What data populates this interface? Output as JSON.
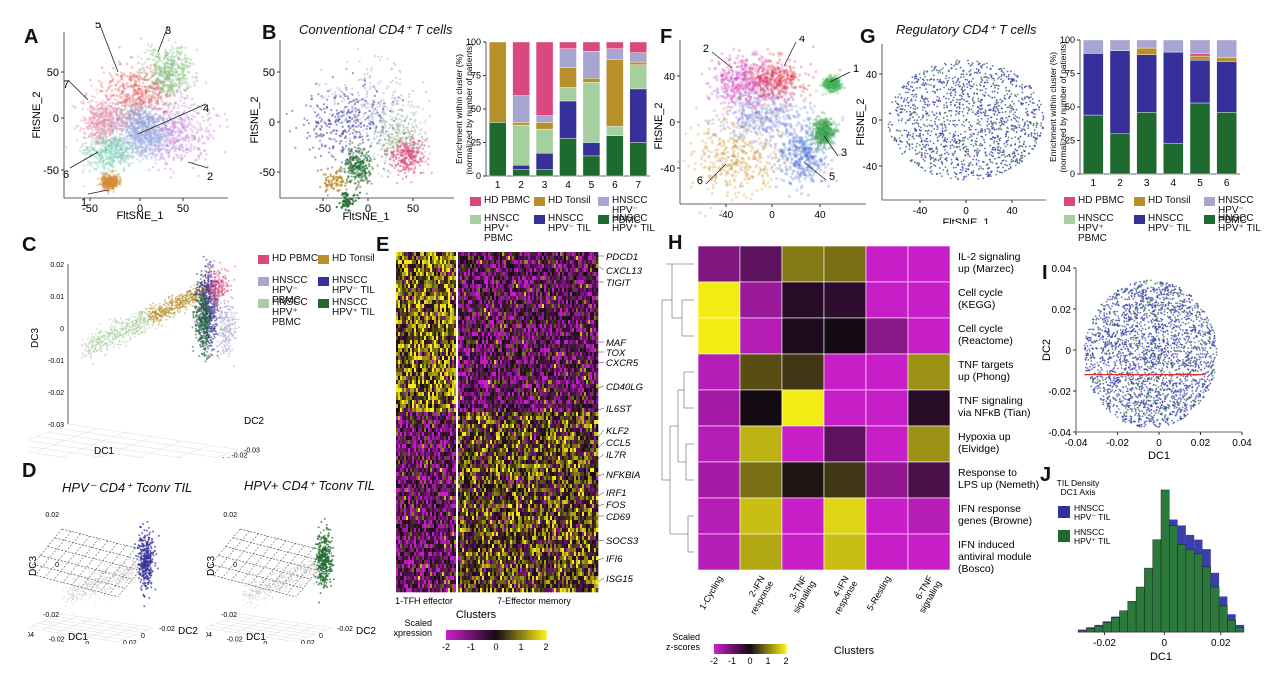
{
  "labels": {
    "A": "A",
    "B": "B",
    "C": "C",
    "D": "D",
    "E": "E",
    "F": "F",
    "G": "G",
    "H": "H",
    "I": "I",
    "J": "J"
  },
  "titles": {
    "B": "Conventional CD4⁺ T cells",
    "G": "Regulatory CD4⁺ T cells",
    "D1": "HPV⁻ CD4⁺ Tconv TIL",
    "D2": "HPV+ CD4⁺ Tconv TIL"
  },
  "colors": {
    "hd_pbmc": "#d9487f",
    "hd_tonsil": "#b8902a",
    "hpvneg_pbmc": "#a7a5d2",
    "hpvpos_pbmc": "#a6cfa0",
    "hpvneg_til": "#35309a",
    "hpvpos_til": "#1f6b2f"
  },
  "legend": [
    {
      "key": "hd_pbmc",
      "label": "HD PBMC"
    },
    {
      "key": "hd_tonsil",
      "label": "HD Tonsil"
    },
    {
      "key": "hpvneg_pbmc",
      "label": "HNSCC\nHPV⁻ PBMC"
    },
    {
      "key": "hpvpos_pbmc",
      "label": "HNSCC\nHPV⁺\nPBMC"
    },
    {
      "key": "hpvneg_til",
      "label": "HNSCC\nHPV⁻ TIL"
    },
    {
      "key": "hpvpos_til",
      "label": "HNSCC\nHPV⁺ TIL"
    }
  ],
  "legend_C": [
    {
      "key": "hd_pbmc",
      "label": "HD PBMC"
    },
    {
      "key": "hd_tonsil",
      "label": "HD Tonsil"
    },
    {
      "key": "hpvneg_pbmc",
      "label": "HNSCC\nHPV⁻\nPBMC"
    },
    {
      "key": "hpvneg_til",
      "label": "HNSCC\nHPV⁻ TIL"
    },
    {
      "key": "hpvpos_pbmc",
      "label": "HNSCC\nHPV⁺\nPBMC"
    },
    {
      "key": "hpvpos_til",
      "label": "HNSCC\nHPV⁺ TIL"
    }
  ],
  "chart_data": [
    {
      "id": "A",
      "type": "scatter",
      "xlabel": "FltSNE_1",
      "ylabel": "FltSNE_2",
      "xticks": [
        -50,
        0,
        50
      ],
      "yticks": [
        -50,
        0,
        50
      ],
      "cluster_labels": [
        "1",
        "2",
        "3",
        "4",
        "5",
        "6",
        "7"
      ]
    },
    {
      "id": "B_scatter",
      "type": "scatter",
      "xlabel": "FltSNE_1",
      "ylabel": "FltSNE_2",
      "xticks": [
        -50,
        0,
        50
      ],
      "yticks": [
        -50,
        0,
        50
      ]
    },
    {
      "id": "B",
      "type": "bar",
      "stacked": true,
      "ylabel": "Enrichment within cluster (%)\n(normalized by number of patients)",
      "ylim": [
        0,
        100
      ],
      "yticks": [
        0,
        25,
        50,
        75,
        100
      ],
      "categories": [
        "1",
        "2",
        "3",
        "4",
        "5",
        "6",
        "7"
      ],
      "series": [
        {
          "name": "HNSCC HPV⁺ TIL",
          "key": "hpvpos_til",
          "values": [
            40,
            5,
            5,
            28,
            15,
            30,
            25
          ]
        },
        {
          "name": "HNSCC HPV⁻ TIL",
          "key": "hpvneg_til",
          "values": [
            0,
            3,
            12,
            28,
            10,
            0,
            40
          ]
        },
        {
          "name": "HNSCC HPV⁺ PBMC",
          "key": "hpvpos_pbmc",
          "values": [
            0,
            30,
            18,
            10,
            45,
            7,
            18
          ]
        },
        {
          "name": "HD Tonsil",
          "key": "hd_tonsil",
          "values": [
            60,
            2,
            5,
            15,
            3,
            50,
            2
          ]
        },
        {
          "name": "HNSCC HPV⁻ PBMC",
          "key": "hpvneg_pbmc",
          "values": [
            0,
            20,
            5,
            14,
            20,
            8,
            7
          ]
        },
        {
          "name": "HD PBMC",
          "key": "hd_pbmc",
          "values": [
            0,
            40,
            55,
            5,
            7,
            5,
            8
          ]
        }
      ]
    },
    {
      "id": "C",
      "type": "scatter",
      "three_d": true,
      "xlabel": "DC1",
      "ylabel": "DC2",
      "zlabel": "DC3",
      "xticks": [
        -0.04,
        -0.03,
        -0.02,
        -0.01,
        0,
        0.01,
        0.02
      ],
      "yticks": [
        -0.03,
        -0.02,
        -0.01,
        0,
        0.01,
        0.02
      ],
      "zticks": [
        -0.03,
        -0.02,
        -0.01,
        0,
        0.01,
        0.02
      ]
    },
    {
      "id": "D",
      "type": "scatter",
      "three_d": true,
      "xlabel": "DC1",
      "ylabel": "DC2",
      "zlabel": "DC3",
      "xticks": [
        -0.04,
        -0.02,
        0,
        0.02
      ],
      "yticks": [
        -0.02,
        0,
        0.02
      ],
      "zticks": [
        -0.02,
        0,
        0.02
      ]
    },
    {
      "id": "E",
      "type": "heatmap",
      "xlabel": "Clusters",
      "groups": [
        "1-TFH effector",
        "7-Effector memory"
      ],
      "genes": [
        "PDCD1",
        "CXCL13",
        "TIGIT",
        "MAF",
        "TOX",
        "CXCR5",
        "CD40LG",
        "IL6ST",
        "KLF2",
        "CCL5",
        "IL7R",
        "NFKBIA",
        "IRF1",
        "FOS",
        "CD69",
        "SOCS3",
        "IFI6",
        "ISG15"
      ],
      "colorbar_label": "Scaled\nExpression",
      "colorbar_ticks": [
        "-2",
        "-1",
        "0",
        "1",
        "2"
      ]
    },
    {
      "id": "F",
      "type": "scatter",
      "xlabel": "FltSNE_1",
      "ylabel": "FltSNE_2",
      "xticks": [
        -40,
        0,
        40
      ],
      "yticks": [
        -40,
        0,
        40
      ],
      "cluster_labels": [
        "1",
        "2",
        "3",
        "4",
        "5",
        "6"
      ]
    },
    {
      "id": "G_scatter",
      "type": "scatter",
      "xlabel": "FltSNE_1",
      "ylabel": "FltSNE_2",
      "xticks": [
        -40,
        0,
        40
      ],
      "yticks": [
        -40,
        0,
        40
      ]
    },
    {
      "id": "G",
      "type": "bar",
      "stacked": true,
      "ylabel": "Enrichment within cluster (%)\n(normalized by number of patients)",
      "ylim": [
        0,
        100
      ],
      "yticks": [
        0,
        25,
        50,
        75,
        100
      ],
      "categories": [
        "1",
        "2",
        "3",
        "4",
        "5",
        "6"
      ],
      "series": [
        {
          "name": "HNSCC HPV⁺ TIL",
          "key": "hpvpos_til",
          "values": [
            44,
            30,
            46,
            23,
            53,
            46
          ]
        },
        {
          "name": "HNSCC HPV⁻ TIL",
          "key": "hpvneg_til",
          "values": [
            46,
            62,
            43,
            68,
            32,
            38
          ]
        },
        {
          "name": "HD Tonsil",
          "key": "hd_tonsil",
          "values": [
            0,
            0,
            5,
            0,
            3,
            3
          ]
        },
        {
          "name": "HD PBMC",
          "key": "hd_pbmc",
          "values": [
            0,
            0,
            0,
            0,
            2,
            0
          ]
        },
        {
          "name": "HNSCC HPV⁻ PBMC",
          "key": "hpvneg_pbmc",
          "values": [
            10,
            8,
            6,
            9,
            10,
            13
          ]
        }
      ]
    },
    {
      "id": "H",
      "type": "heatmap",
      "xlabel": "Clusters",
      "columns": [
        "1-Cycling",
        "2-IFN\nresponse",
        "3-TNF\nsignaling",
        "4-IFN\nresponse",
        "5-Resting",
        "6-TNF\nsignaling"
      ],
      "rows": [
        "IL-2 signaling\nup (Marzec)",
        "Cell cycle\n(KEGG)",
        "Cell cycle\n(Reactome)",
        "TNF targets\nup (Phong)",
        "TNF signaling\nvia NFκB (Tian)",
        "Hypoxia up\n(Elvidge)",
        "Response to\nLPS up (Nemeth)",
        "IFN response\ngenes (Browne)",
        "IFN induced\nantiviral module\n(Bosco)"
      ],
      "values": [
        [
          -1.2,
          -0.8,
          1.0,
          0.9,
          -2.0,
          -2.0
        ],
        [
          2.0,
          -1.5,
          -0.2,
          -0.3,
          -2.0,
          -2.0
        ],
        [
          2.0,
          -1.8,
          -0.1,
          0.0,
          -1.3,
          -2.0
        ],
        [
          -1.8,
          0.6,
          0.4,
          -2.0,
          -2.0,
          1.2
        ],
        [
          -1.6,
          0.0,
          2.0,
          -2.0,
          -2.0,
          -0.2
        ],
        [
          -1.8,
          1.5,
          -2.0,
          -0.8,
          -2.0,
          1.2
        ],
        [
          -1.6,
          0.9,
          0.1,
          0.4,
          -1.4,
          -0.6
        ],
        [
          -1.8,
          1.6,
          -2.0,
          1.8,
          -2.0,
          -1.8
        ],
        [
          -1.8,
          1.4,
          -2.0,
          1.6,
          -2.0,
          -2.0
        ]
      ],
      "colorbar_label": "Scaled\nz-scores",
      "colorbar_ticks": [
        "-2",
        "-1",
        "0",
        "1",
        "2"
      ]
    },
    {
      "id": "I",
      "type": "scatter",
      "xlabel": "DC1",
      "ylabel": "DC2",
      "xticks": [
        "-0.04",
        "-0.02",
        "0",
        "0.02",
        "0.04"
      ],
      "yticks": [
        "0.04",
        "0.02",
        "0",
        "-0.02",
        "-0.04"
      ],
      "xlim": [
        -0.04,
        0.04
      ],
      "ylim": [
        -0.04,
        0.04
      ]
    },
    {
      "id": "J",
      "type": "histogram",
      "xlabel": "DC1",
      "xticks": [
        "-0.02",
        "0",
        "0.02"
      ],
      "legend_title": "TIL Density\nDC1 Axis",
      "series": [
        {
          "name": "HNSCC\nHPV⁻ TIL",
          "key": "hpvneg_til"
        },
        {
          "name": "HNSCC\nHPV⁺ TIL",
          "key": "hpvpos_til"
        }
      ],
      "bins_x": [
        -0.03,
        -0.027,
        -0.024,
        -0.021,
        -0.018,
        -0.015,
        -0.012,
        -0.009,
        -0.006,
        -0.003,
        0,
        0.003,
        0.006,
        0.009,
        0.012,
        0.015,
        0.018,
        0.021,
        0.024,
        0.027,
        0.03
      ],
      "hpvneg": [
        2,
        4,
        6,
        9,
        13,
        18,
        24,
        32,
        42,
        56,
        80,
        95,
        90,
        82,
        78,
        70,
        50,
        30,
        15,
        6
      ],
      "hpvpos": [
        1,
        3,
        5,
        8,
        12,
        18,
        26,
        38,
        54,
        78,
        120,
        90,
        74,
        70,
        66,
        55,
        38,
        22,
        10,
        4
      ]
    }
  ]
}
